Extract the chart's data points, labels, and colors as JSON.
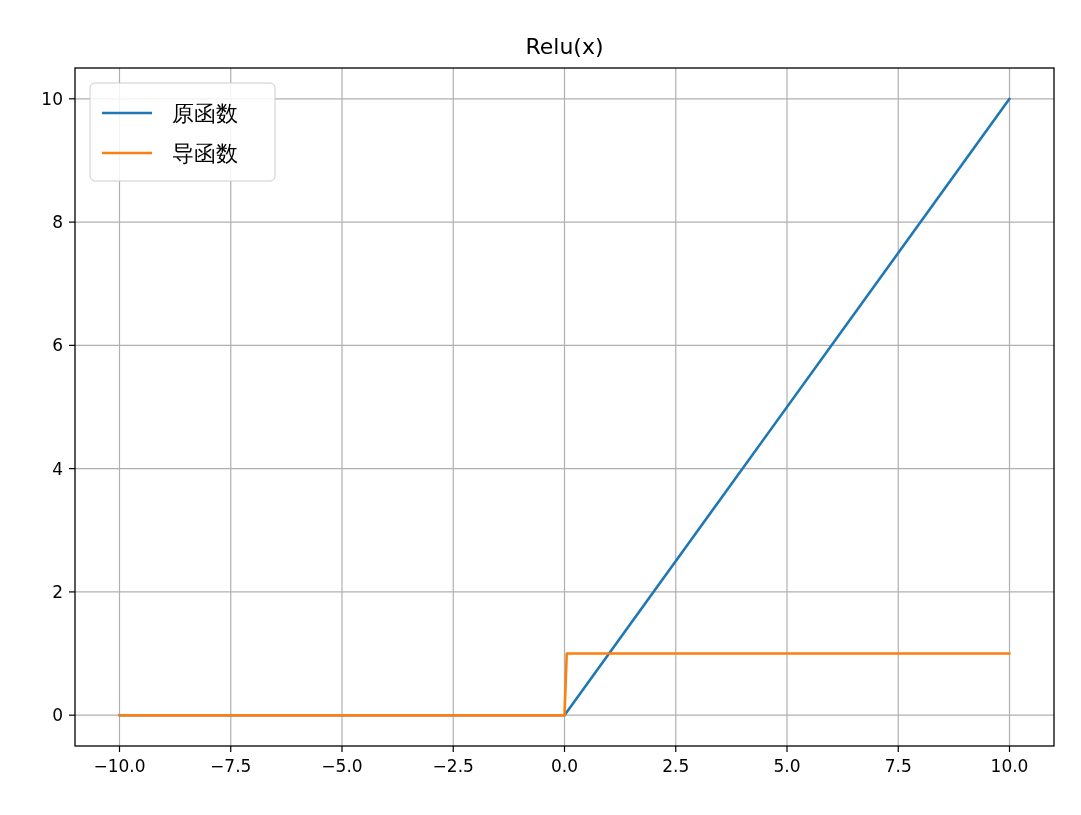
{
  "chart_data": {
    "type": "line",
    "title": "Relu(x)",
    "xlim": [
      -11,
      11
    ],
    "xticks": [
      {
        "value": -10,
        "label": "−10.0"
      },
      {
        "value": -7.5,
        "label": "−7.5"
      },
      {
        "value": -5,
        "label": "−5.0"
      },
      {
        "value": -2.5,
        "label": "−2.5"
      },
      {
        "value": 0,
        "label": "0.0"
      },
      {
        "value": 2.5,
        "label": "2.5"
      },
      {
        "value": 5,
        "label": "5.0"
      },
      {
        "value": 7.5,
        "label": "7.5"
      },
      {
        "value": 10,
        "label": "10.0"
      }
    ],
    "ylim": [
      -0.5,
      10.5
    ],
    "yticks": [
      0,
      2,
      4,
      6,
      8,
      10
    ],
    "grid": true,
    "legend": "top left",
    "marker": "none",
    "line_style": "solid",
    "series": [
      {
        "name": "原函数",
        "color": "#1f77b4",
        "x": [
          -10,
          0,
          10
        ],
        "values": [
          0,
          0,
          10
        ]
      },
      {
        "name": "导函数",
        "color": "#ff7f0e",
        "x": [
          -10,
          0,
          0.05,
          10
        ],
        "values": [
          0,
          0,
          1,
          1
        ]
      }
    ]
  }
}
